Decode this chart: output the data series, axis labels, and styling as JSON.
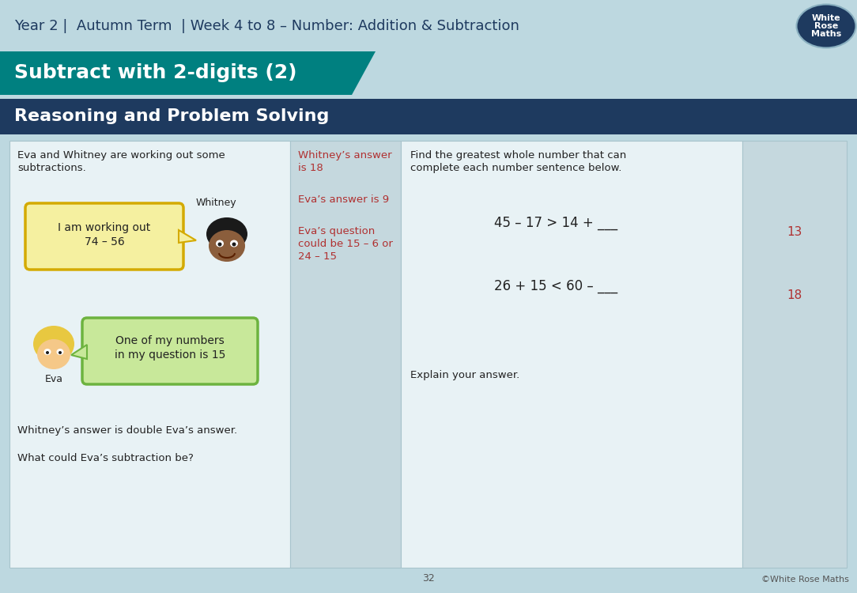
{
  "top_bar_color": "#bdd8e0",
  "teal_bar_color": "#008080",
  "navy_bar_color": "#1e3a5f",
  "header_text": "Year 2 |  Autumn Term  | Week 4 to 8 – Number: Addition & Subtraction",
  "header_text_color": "#1e3a5f",
  "subtitle": "Subtract with 2-digits (2)",
  "subtitle_color": "#ffffff",
  "section_title": "Reasoning and Problem Solving",
  "section_title_color": "#ffffff",
  "panel_bg": "#e8f2f5",
  "answer_col_bg": "#c5d8de",
  "bubble1_text_line1": "I am working out",
  "bubble1_text_line2": "74 – 56",
  "bubble1_color": "#f5f0a0",
  "bubble1_border": "#d4aa00",
  "bubble2_text_line1": "One of my numbers",
  "bubble2_text_line2": "in my question is 15",
  "bubble2_color": "#c8e89a",
  "bubble2_border": "#6db33f",
  "whitney_label": "Whitney",
  "eva_label": "Eva",
  "left_text1_line1": "Eva and Whitney are working out some",
  "left_text1_line2": "subtractions.",
  "left_text2": "Whitney’s answer is double Eva’s answer.",
  "left_text3": "What could Eva’s subtraction be?",
  "answer_text1_line1": "Whitney’s answer",
  "answer_text1_line2": "is 18",
  "answer_text2": "Eva’s answer is 9",
  "answer_text3_line1": "Eva’s question",
  "answer_text3_line2": "could be 15 – 6 or",
  "answer_text3_line3": "24 – 15",
  "answer_color": "#b03030",
  "right_instr_line1": "Find the greatest whole number that can",
  "right_instr_line2": "complete each number sentence below.",
  "equation1": "45 – 17 > 14 + ___",
  "equation2": "26 + 15 < 60 – ___",
  "answer_r1": "13",
  "answer_r2": "18",
  "explain_text": "Explain your answer.",
  "page_num": "32",
  "copyright": "©White Rose Maths",
  "logo_bg": "#1e3a5f",
  "logo_line1": "White",
  "logo_line2": "Rose",
  "logo_line3": "Maths",
  "text_color": "#222222"
}
